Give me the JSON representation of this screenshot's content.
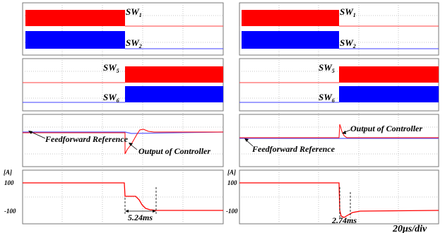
{
  "chart_data": [
    {
      "type": "line",
      "panel": "left",
      "switch_labels": [
        {
          "name": "SW",
          "sub": "1"
        },
        {
          "name": "SW",
          "sub": "2"
        },
        {
          "name": "SW",
          "sub": "5"
        },
        {
          "name": "SW",
          "sub": "6"
        }
      ],
      "annotations": {
        "feedforward": "Feedforward Reference",
        "controller": "Output of Controller",
        "duration": "5.24ms"
      },
      "current_axis": {
        "unit": "[A]",
        "ticks": [
          "100",
          "-100"
        ]
      },
      "colors": {
        "sw_top": "#ff0000",
        "sw_bottom": "#0000ff",
        "reference": "#5a5aff",
        "output": "#ff0000",
        "current": "#ff0000"
      }
    },
    {
      "type": "line",
      "panel": "right",
      "switch_labels": [
        {
          "name": "SW",
          "sub": "1"
        },
        {
          "name": "SW",
          "sub": "2"
        },
        {
          "name": "SW",
          "sub": "5"
        },
        {
          "name": "SW",
          "sub": "6"
        }
      ],
      "annotations": {
        "feedforward": "Feedforward Reference",
        "controller": "Output of Controller",
        "duration": "2.74ms"
      },
      "current_axis": {
        "unit": "[A]",
        "ticks": [
          "100",
          "-100"
        ]
      },
      "colors": {
        "sw_top": "#ff0000",
        "sw_bottom": "#0000ff",
        "reference": "#5a5aff",
        "output": "#ff0000",
        "current": "#ff0000"
      }
    }
  ],
  "timescale": {
    "value": "20",
    "unit": "μs/div"
  }
}
